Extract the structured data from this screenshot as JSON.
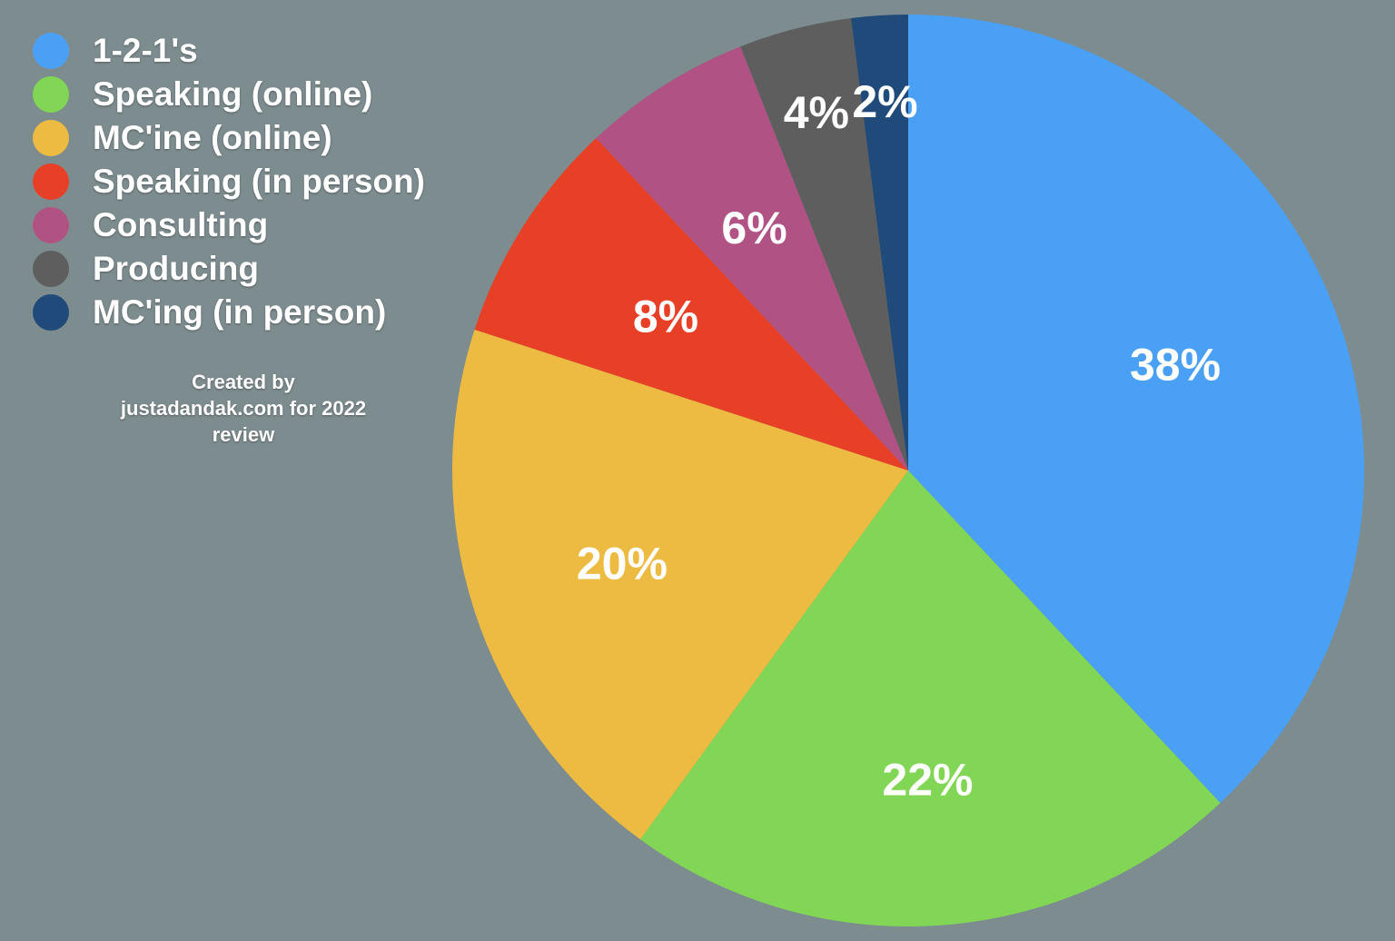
{
  "chart_data": {
    "type": "pie",
    "categories": [
      "1-2-1's",
      "Speaking (online)",
      "MC'ine (online)",
      "Speaking (in person)",
      "Consulting",
      "Producing",
      "MC'ing (in person)"
    ],
    "values": [
      38,
      22,
      20,
      8,
      6,
      4,
      2
    ],
    "value_labels": [
      "38%",
      "22%",
      "20%",
      "8%",
      "6%",
      "4%",
      "2%"
    ],
    "colors": [
      "#4aa0f5",
      "#82d655",
      "#eebb42",
      "#e84026",
      "#b05384",
      "#5e5e5e",
      "#1f4a7a"
    ],
    "legend_position": "top-left",
    "start": "12 o'clock",
    "direction": "clockwise"
  },
  "annotation": {
    "line1": "Created by",
    "line2": "justadandak.com for 2022",
    "line3": "review"
  }
}
